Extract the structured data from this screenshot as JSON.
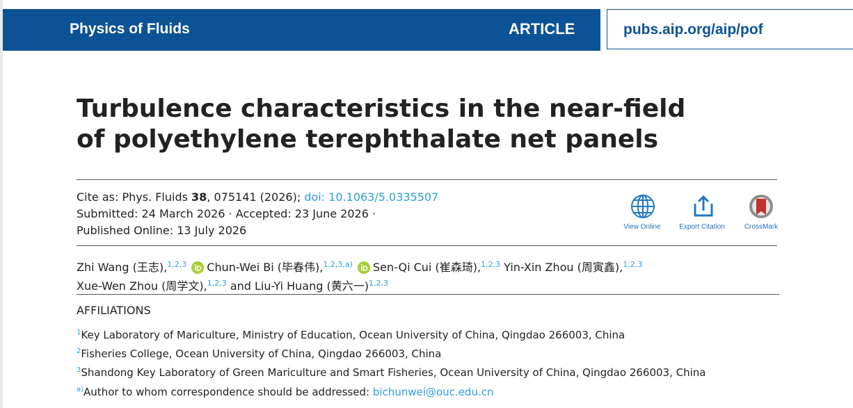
{
  "header": {
    "journal": "Physics of Fluids",
    "section": "ARTICLE",
    "url": "pubs.aip.org/aip/pof"
  },
  "title_lines": [
    "Turbulence characteristics in the near-field",
    "of polyethylene terephthalate net panels"
  ],
  "cite": {
    "prefix": "Cite as: Phys. Fluids",
    "volume": "38",
    "rest": ", 075141 (2026);",
    "doi": "doi: 10.1063/5.0335507"
  },
  "dates": {
    "line1": "Submitted: 24 March 2026 · Accepted: 23 June 2026 ·",
    "line2": "Published Online: 13 July 2026"
  },
  "tools": [
    "View Online",
    "Export Citation",
    "CrossMark"
  ],
  "authors": [
    {
      "name": "Zhi Wang (王志),",
      "sup": "1,2,3"
    },
    {
      "name": "Chun-Wei Bi (毕春伟),",
      "sup": "1,2,3,a)"
    },
    {
      "name": "Sen-Qi Cui (崔森琦),",
      "sup": "1,2,3"
    },
    {
      "name": "Yin-Xin Zhou (周寅鑫),",
      "sup": "1,2,3"
    },
    {
      "name": "Xue-Wen Zhou (周学文),",
      "sup": "1,2,3"
    },
    {
      "name": "Liu-Yi Huang (黄六一)",
      "sup": "1,2,3"
    }
  ],
  "conjunction": "and",
  "affiliations_heading": "AFFILIATIONS",
  "affiliations": [
    {
      "mark": "1",
      "text": "Key Laboratory of Mariculture, Ministry of Education, Ocean University of China, Qingdao 266003, China"
    },
    {
      "mark": "2",
      "text": "Fisheries College, Ocean University of China, Qingdao 266003, China"
    },
    {
      "mark": "3",
      "text": "Shandong Key Laboratory of Green Mariculture and Smart Fisheries, Ocean University of China, Qingdao 266003, China"
    }
  ],
  "correspondence": {
    "mark": "a)",
    "text": "Author to whom correspondence should be addressed:",
    "email": "bichunwei@ouc.edu.cn"
  }
}
